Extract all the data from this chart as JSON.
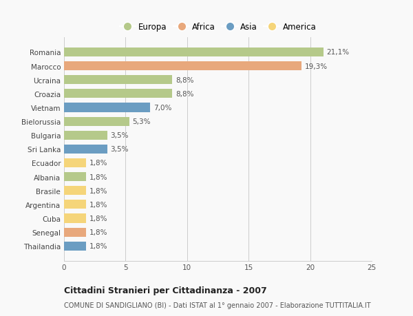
{
  "categories": [
    "Thailandia",
    "Senegal",
    "Cuba",
    "Argentina",
    "Brasile",
    "Albania",
    "Ecuador",
    "Sri Lanka",
    "Bulgaria",
    "Bielorussia",
    "Vietnam",
    "Croazia",
    "Ucraina",
    "Marocco",
    "Romania"
  ],
  "values": [
    1.8,
    1.8,
    1.8,
    1.8,
    1.8,
    1.8,
    1.8,
    3.5,
    3.5,
    5.3,
    7.0,
    8.8,
    8.8,
    19.3,
    21.1
  ],
  "labels": [
    "1,8%",
    "1,8%",
    "1,8%",
    "1,8%",
    "1,8%",
    "1,8%",
    "1,8%",
    "3,5%",
    "3,5%",
    "5,3%",
    "7,0%",
    "8,8%",
    "8,8%",
    "19,3%",
    "21,1%"
  ],
  "colors": [
    "#6b9dc2",
    "#e8a87c",
    "#f5d57a",
    "#f5d57a",
    "#f5d57a",
    "#b5c98a",
    "#f5d57a",
    "#6b9dc2",
    "#b5c98a",
    "#b5c98a",
    "#6b9dc2",
    "#b5c98a",
    "#b5c98a",
    "#e8a87c",
    "#b5c98a"
  ],
  "legend_labels": [
    "Europa",
    "Africa",
    "Asia",
    "America"
  ],
  "legend_colors": [
    "#b5c98a",
    "#e8a87c",
    "#6b9dc2",
    "#f5d57a"
  ],
  "xlim": [
    0,
    25
  ],
  "xticks": [
    0,
    5,
    10,
    15,
    20,
    25
  ],
  "title": "Cittadini Stranieri per Cittadinanza - 2007",
  "subtitle": "COMUNE DI SANDIGLIANO (BI) - Dati ISTAT al 1° gennaio 2007 - Elaborazione TUTTITALIA.IT",
  "bg_color": "#f9f9f9",
  "bar_height": 0.65,
  "grid_color": "#cccccc",
  "label_fontsize": 7.5,
  "tick_fontsize": 7.5,
  "legend_fontsize": 8.5,
  "title_fontsize": 9,
  "subtitle_fontsize": 7
}
